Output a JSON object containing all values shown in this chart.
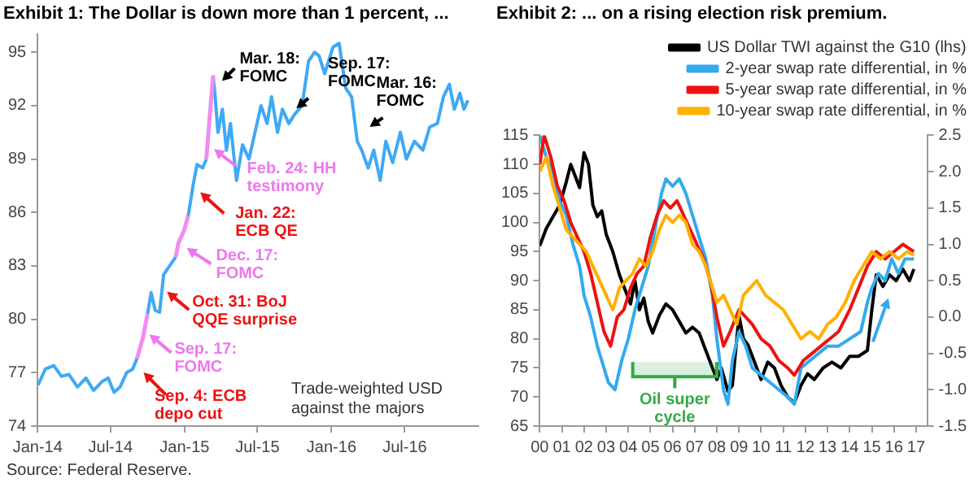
{
  "chart_data": [
    {
      "type": "line",
      "title": "Exhibit 1: The Dollar is down more than 1 percent, ...",
      "x": [
        "2014-01-02",
        "2014-01-20",
        "2014-02-10",
        "2014-03-01",
        "2014-03-20",
        "2014-04-10",
        "2014-05-01",
        "2014-05-20",
        "2014-06-10",
        "2014-06-25",
        "2014-07-10",
        "2014-07-25",
        "2014-08-10",
        "2014-08-25",
        "2014-09-05",
        "2014-09-20",
        "2014-10-01",
        "2014-10-10",
        "2014-10-20",
        "2014-10-31",
        "2014-11-10",
        "2014-11-25",
        "2014-12-10",
        "2014-12-17",
        "2014-12-31",
        "2015-01-10",
        "2015-01-22",
        "2015-02-01",
        "2015-02-15",
        "2015-02-24",
        "2015-03-05",
        "2015-03-13",
        "2015-03-18",
        "2015-03-25",
        "2015-04-05",
        "2015-04-15",
        "2015-04-25",
        "2015-05-10",
        "2015-05-25",
        "2015-06-10",
        "2015-06-25",
        "2015-07-10",
        "2015-07-25",
        "2015-08-05",
        "2015-08-20",
        "2015-09-01",
        "2015-09-17",
        "2015-10-01",
        "2015-10-20",
        "2015-11-05",
        "2015-11-20",
        "2015-12-01",
        "2015-12-15",
        "2016-01-05",
        "2016-01-20",
        "2016-02-05",
        "2016-02-20",
        "2016-03-05",
        "2016-03-16",
        "2016-04-01",
        "2016-04-15",
        "2016-05-01",
        "2016-05-15",
        "2016-06-01",
        "2016-06-20",
        "2016-07-05",
        "2016-07-25",
        "2016-08-15",
        "2016-09-01",
        "2016-09-20",
        "2016-10-05",
        "2016-10-20",
        "2016-11-01",
        "2016-11-15",
        "2016-11-25",
        "2016-12-05"
      ],
      "series": [
        {
          "color": "#3fa9f5",
          "values": [
            76.3,
            77.2,
            77.4,
            76.8,
            76.9,
            76.2,
            76.7,
            76.0,
            76.5,
            76.7,
            75.9,
            76.2,
            77.0,
            77.2,
            77.8,
            null,
            80.3,
            81.5,
            80.5,
            80.4,
            82.5,
            83.0,
            83.5,
            null,
            null,
            85.8,
            87.5,
            88.7,
            88.5,
            89.0,
            null,
            93.7,
            92.5,
            90.5,
            91.8,
            89.5,
            91.0,
            87.8,
            89.8,
            89.0,
            90.5,
            92.0,
            91.0,
            92.5,
            90.5,
            91.8,
            91.0,
            91.5,
            92.0,
            94.5,
            95.0,
            94.8,
            93.8,
            95.3,
            95.5,
            93.0,
            92.5,
            90.0,
            89.5,
            88.5,
            89.5,
            87.8,
            90.0,
            88.8,
            90.5,
            89.0,
            90.0,
            89.5,
            90.8,
            91.0,
            92.5,
            93.2,
            91.8,
            92.7,
            91.8,
            92.3
          ]
        },
        {
          "color": "#f08cf0",
          "x": [
            "2014-09-05",
            "2014-09-20",
            "2014-10-01",
            "2014-10-05",
            "2014-12-10",
            "2014-12-17",
            "2014-12-31",
            "2015-01-10",
            "2015-02-20",
            "2015-02-24",
            "2015-03-05",
            "2015-03-13"
          ],
          "values": [
            77.8,
            79.0,
            80.3,
            null,
            83.5,
            84.3,
            85.0,
            85.8,
            null,
            89.0,
            91.5,
            93.7
          ]
        }
      ],
      "xlim": [
        "2014-01-01",
        "2016-12-31"
      ],
      "xticks": [
        {
          "value": "2014-01-01",
          "label": "Jan-14"
        },
        {
          "value": "2014-07-01",
          "label": "Jul-14"
        },
        {
          "value": "2015-01-01",
          "label": "Jan-15"
        },
        {
          "value": "2015-07-01",
          "label": "Jul-15"
        },
        {
          "value": "2016-01-01",
          "label": "Jan-16"
        },
        {
          "value": "2016-07-01",
          "label": "Jul-16"
        }
      ],
      "ylim": [
        74,
        96
      ],
      "yticks": [
        74,
        77,
        80,
        83,
        86,
        89,
        92,
        95
      ],
      "grid": false,
      "legend": false,
      "marker": "none",
      "line_style": "solid",
      "annotations": [
        {
          "text": "Mar. 18: FOMC",
          "x": "2015-03-18",
          "y": 93.0
        },
        {
          "text": "Sep. 17: FOMC",
          "x": "2015-09-17",
          "y": 91.5
        },
        {
          "text": "Mar. 16: FOMC",
          "x": "2016-03-16",
          "y": 90.5
        },
        {
          "text": "Feb. 24: HH testimony",
          "x": "2015-02-24",
          "y": 89.9
        },
        {
          "text": "Jan. 22: ECB QE",
          "x": "2015-01-22",
          "y": 87.5
        },
        {
          "text": "Dec. 17: FOMC",
          "x": "2014-12-17",
          "y": 84.3
        },
        {
          "text": "Oct. 31: BoJ QQE surprise",
          "x": "2014-10-31",
          "y": 81.9
        },
        {
          "text": "Sep. 17: FOMC",
          "x": "2014-09-17",
          "y": 79.5
        },
        {
          "text": "Sep. 4: ECB depo cut",
          "x": "2014-09-04",
          "y": 77.4
        },
        "Trade-weighted USD against the majors",
        "Source: Federal Reserve."
      ]
    },
    {
      "type": "line",
      "title": "Exhibit 2: ... on a rising election risk premium.",
      "series": [
        {
          "name": "US Dollar TWI against the G10 (lhs)",
          "color": "#000000",
          "x": [
            2000.0,
            2000.3,
            2000.6,
            2000.9,
            2001.2,
            2001.4,
            2001.6,
            2001.8,
            2002.0,
            2002.2,
            2002.4,
            2002.6,
            2002.8,
            2003.0,
            2003.3,
            2003.6,
            2003.9,
            2004.1,
            2004.3,
            2004.5,
            2004.7,
            2004.9,
            2005.1,
            2005.4,
            2005.7,
            2006.0,
            2006.3,
            2006.6,
            2006.9,
            2007.2,
            2007.5,
            2007.8,
            2008.0,
            2008.2,
            2008.5,
            2008.7,
            2008.9,
            2009.0,
            2009.2,
            2009.4,
            2009.7,
            2010.0,
            2010.3,
            2010.6,
            2010.9,
            2011.2,
            2011.5,
            2011.8,
            2012.1,
            2012.4,
            2012.8,
            2013.2,
            2013.6,
            2014.0,
            2014.4,
            2014.8,
            2015.0,
            2015.2,
            2015.5,
            2015.8,
            2016.1,
            2016.4,
            2016.7,
            2016.9
          ],
          "values": [
            96,
            99,
            101,
            103,
            107,
            110,
            108,
            106,
            112,
            110,
            103,
            101,
            102,
            98,
            95,
            91,
            88,
            86,
            90,
            85,
            87,
            83,
            81,
            84,
            86,
            85,
            83,
            81,
            82,
            81,
            78,
            75,
            73,
            75,
            71,
            72,
            80,
            84,
            80,
            79,
            76,
            73,
            76,
            75,
            72,
            70,
            69,
            72,
            74,
            73,
            75,
            76,
            75,
            77,
            77,
            78,
            85,
            91,
            89,
            91,
            90,
            92,
            90,
            92
          ]
        },
        {
          "name": "2-year swap rate differential, in %",
          "color": "#33aaee",
          "axis": "y2",
          "x": [
            2000.0,
            2000.3,
            2000.6,
            2000.9,
            2001.2,
            2001.5,
            2001.8,
            2002.0,
            2002.3,
            2002.6,
            2002.9,
            2003.1,
            2003.4,
            2003.7,
            2004.0,
            2004.3,
            2004.6,
            2004.9,
            2005.2,
            2005.5,
            2005.7,
            2006.0,
            2006.3,
            2006.6,
            2006.9,
            2007.2,
            2007.5,
            2007.8,
            2008.0,
            2008.3,
            2008.5,
            2008.7,
            2009.0,
            2009.3,
            2009.6,
            2010.0,
            2010.4,
            2010.8,
            2011.2,
            2011.5,
            2011.8,
            2012.2,
            2012.6,
            2013.0,
            2013.5,
            2014.0,
            2014.5,
            2014.8,
            2015.0,
            2015.3,
            2015.6,
            2015.9,
            2016.2,
            2016.5,
            2016.9
          ],
          "values": [
            2.5,
            2.2,
            2.0,
            1.6,
            1.4,
            1.0,
            0.7,
            0.3,
            0.0,
            -0.4,
            -0.7,
            -0.9,
            -1.0,
            -0.6,
            -0.3,
            0.1,
            0.4,
            0.7,
            1.2,
            1.7,
            1.9,
            1.8,
            1.9,
            1.7,
            1.4,
            1.1,
            0.8,
            0.3,
            -0.3,
            -1.0,
            -1.2,
            -0.6,
            -0.2,
            -0.4,
            -0.7,
            -0.8,
            -0.9,
            -1.0,
            -1.1,
            -1.2,
            -0.7,
            -0.6,
            -0.5,
            -0.4,
            -0.4,
            -0.3,
            -0.2,
            0.2,
            0.4,
            0.6,
            0.5,
            0.8,
            0.6,
            0.8,
            0.8
          ]
        },
        {
          "name": "5-year swap rate differential, in %",
          "color": "#ee1111",
          "axis": "y2",
          "x": [
            2000.0,
            2000.2,
            2000.5,
            2000.8,
            2001.1,
            2001.4,
            2001.7,
            2002.0,
            2002.3,
            2002.6,
            2002.9,
            2003.2,
            2003.5,
            2003.8,
            2004.1,
            2004.4,
            2004.7,
            2005.0,
            2005.3,
            2005.6,
            2005.9,
            2006.2,
            2006.5,
            2006.8,
            2007.1,
            2007.4,
            2007.7,
            2008.0,
            2008.3,
            2008.6,
            2009.0,
            2009.3,
            2009.6,
            2010.0,
            2010.4,
            2010.8,
            2011.2,
            2011.5,
            2011.9,
            2012.3,
            2012.7,
            2013.1,
            2013.5,
            2014.0,
            2014.4,
            2014.8,
            2015.2,
            2015.6,
            2016.0,
            2016.4,
            2016.9
          ],
          "values": [
            2.1,
            2.5,
            2.2,
            1.8,
            1.6,
            1.3,
            1.1,
            0.9,
            0.6,
            0.2,
            -0.2,
            -0.4,
            0.0,
            0.1,
            0.4,
            0.6,
            0.7,
            1.1,
            1.4,
            1.6,
            1.5,
            1.6,
            1.4,
            1.2,
            1.0,
            0.8,
            0.5,
            0.0,
            -0.4,
            -0.2,
            0.1,
            0.0,
            -0.1,
            -0.3,
            -0.4,
            -0.6,
            -0.7,
            -0.8,
            -0.6,
            -0.5,
            -0.4,
            -0.3,
            -0.2,
            0.1,
            0.4,
            0.7,
            0.9,
            0.8,
            0.9,
            1.0,
            0.9
          ]
        },
        {
          "name": "10-year swap rate differential, in %",
          "color": "#ffb000",
          "axis": "y2",
          "x": [
            2000.0,
            2000.3,
            2000.6,
            2000.9,
            2001.2,
            2001.5,
            2001.8,
            2002.1,
            2002.4,
            2002.7,
            2003.0,
            2003.3,
            2003.6,
            2003.9,
            2004.2,
            2004.5,
            2004.8,
            2005.1,
            2005.4,
            2005.7,
            2006.0,
            2006.3,
            2006.6,
            2006.9,
            2007.2,
            2007.5,
            2007.8,
            2008.0,
            2008.3,
            2008.6,
            2008.9,
            2009.2,
            2009.5,
            2009.8,
            2010.2,
            2010.6,
            2011.0,
            2011.4,
            2011.8,
            2012.2,
            2012.6,
            2013.0,
            2013.4,
            2013.8,
            2014.2,
            2014.6,
            2015.0,
            2015.4,
            2015.8,
            2016.2,
            2016.6,
            2016.9
          ],
          "values": [
            2.0,
            2.2,
            1.8,
            1.5,
            1.2,
            1.1,
            1.0,
            0.9,
            0.7,
            0.5,
            0.3,
            0.1,
            0.4,
            0.5,
            0.6,
            0.8,
            0.7,
            0.9,
            1.2,
            1.4,
            1.3,
            1.4,
            1.3,
            1.0,
            0.9,
            0.7,
            0.4,
            0.2,
            0.3,
            0.1,
            -0.1,
            0.3,
            0.4,
            0.5,
            0.3,
            0.2,
            0.1,
            -0.1,
            -0.3,
            -0.2,
            -0.3,
            -0.1,
            0.0,
            0.2,
            0.5,
            0.7,
            0.9,
            0.8,
            0.9,
            0.8,
            0.9,
            0.85
          ]
        }
      ],
      "xlim": [
        2000,
        2017.5
      ],
      "xticks": [
        {
          "value": 2000,
          "label": "00"
        },
        {
          "value": 2001,
          "label": "01"
        },
        {
          "value": 2002,
          "label": "02"
        },
        {
          "value": 2003,
          "label": "03"
        },
        {
          "value": 2004,
          "label": "04"
        },
        {
          "value": 2005,
          "label": "05"
        },
        {
          "value": 2006,
          "label": "06"
        },
        {
          "value": 2007,
          "label": "07"
        },
        {
          "value": 2008,
          "label": "08"
        },
        {
          "value": 2009,
          "label": "09"
        },
        {
          "value": 2010,
          "label": "10"
        },
        {
          "value": 2011,
          "label": "11"
        },
        {
          "value": 2012,
          "label": "12"
        },
        {
          "value": 2013,
          "label": "13"
        },
        {
          "value": 2014,
          "label": "14"
        },
        {
          "value": 2015,
          "label": "15"
        },
        {
          "value": 2016,
          "label": "16"
        },
        {
          "value": 2017,
          "label": "17"
        }
      ],
      "ylim": [
        65,
        115
      ],
      "yticks": [
        65,
        70,
        75,
        80,
        85,
        90,
        95,
        100,
        105,
        110,
        115
      ],
      "y2lim": [
        -1.5,
        2.5
      ],
      "y2ticks": [
        {
          "value": -1.5,
          "label": "-1.5"
        },
        {
          "value": -1,
          "label": "-1.0"
        },
        {
          "value": -0.5,
          "label": "-0.5"
        },
        {
          "value": 0,
          "label": "0.0"
        },
        {
          "value": 0.5,
          "label": "0.5"
        },
        {
          "value": 1,
          "label": "1.0"
        },
        {
          "value": 1.5,
          "label": "1.5"
        },
        {
          "value": 2,
          "label": "2.0"
        },
        {
          "value": 2.5,
          "label": "2.5"
        }
      ],
      "bands": [
        {
          "axis": "x",
          "from": 2004.2,
          "to": 2008.0,
          "label": "Oil super cycle",
          "color": "#33aa44"
        }
      ],
      "grid": false,
      "legend": "top right",
      "marker": "none",
      "line_style": "solid"
    }
  ]
}
